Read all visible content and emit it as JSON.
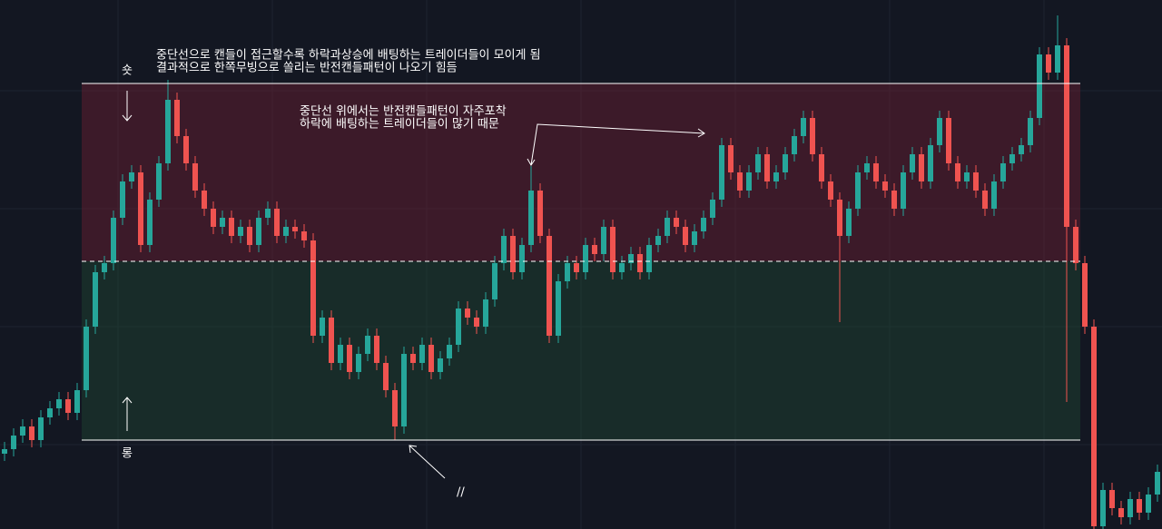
{
  "chart_data": {
    "type": "candlestick",
    "annotations": [
      "숏",
      "롱",
      "중단선으로 캔들이 접근할수록 하락과상승에 배팅하는 트레이더들이 모이게 됨",
      "결과적으로 한쪽무빙으로 쏠리는 반전캔들패턴이 나오기 힘듬",
      "중단선 위에서는 반전캔들패턴이 자주포착",
      "하락에 배팅하는 트레이더들이 많기 때문",
      "//"
    ],
    "ylim": [
      0,
      583
    ],
    "levels": [
      491,
      295,
      98
    ],
    "up_color": "#26a69a",
    "down_color": "#ef5350",
    "open": [
      83,
      88,
      103,
      113,
      98,
      123,
      133,
      143,
      128,
      153,
      223,
      283,
      293,
      343,
      383,
      393,
      313,
      363,
      403,
      473,
      433,
      403,
      373,
      353,
      333,
      343,
      323,
      333,
      313,
      343,
      353,
      323,
      333,
      328,
      318,
      213,
      233,
      183,
      203,
      173,
      193,
      213,
      183,
      153,
      113,
      193,
      183,
      203,
      173,
      188,
      203,
      243,
      233,
      223,
      253,
      293,
      323,
      283,
      313,
      373,
      323,
      213,
      273,
      293,
      283,
      313,
      303,
      333,
      283,
      293,
      303,
      283,
      313,
      323,
      343,
      333,
      313,
      328,
      343,
      363,
      423,
      393,
      373,
      393,
      413,
      383,
      393,
      413,
      433,
      453,
      413,
      383,
      363,
      323,
      353,
      393,
      403,
      383,
      373,
      353,
      393,
      413,
      383,
      423,
      453,
      403,
      383,
      393,
      373,
      353,
      383,
      403,
      413,
      423,
      453,
      523,
      503,
      533,
      333,
      293,
      223,
      3,
      43,
      23,
      13,
      33,
      18,
      38
    ],
    "high": [
      96,
      111,
      121,
      121,
      131,
      141,
      151,
      151,
      161,
      231,
      291,
      301,
      351,
      391,
      401,
      401,
      371,
      411,
      495,
      481,
      441,
      411,
      381,
      361,
      351,
      351,
      341,
      341,
      351,
      361,
      361,
      341,
      341,
      336,
      326,
      241,
      241,
      211,
      211,
      201,
      221,
      221,
      191,
      161,
      201,
      201,
      211,
      211,
      196,
      211,
      251,
      251,
      241,
      261,
      301,
      331,
      331,
      321,
      400,
      381,
      331,
      281,
      301,
      301,
      321,
      321,
      341,
      341,
      301,
      311,
      311,
      321,
      331,
      351,
      351,
      341,
      336,
      351,
      371,
      431,
      431,
      401,
      401,
      421,
      421,
      401,
      421,
      441,
      461,
      461,
      421,
      391,
      371,
      361,
      401,
      411,
      411,
      391,
      381,
      401,
      421,
      421,
      431,
      461,
      461,
      411,
      401,
      401,
      381,
      391,
      411,
      421,
      431,
      461,
      531,
      531,
      566,
      541,
      341,
      301,
      231,
      51,
      51,
      31,
      41,
      41,
      46,
      71
    ],
    "low": [
      75,
      80,
      95,
      90,
      90,
      115,
      125,
      120,
      120,
      145,
      215,
      275,
      285,
      335,
      375,
      305,
      305,
      355,
      395,
      425,
      395,
      365,
      345,
      325,
      325,
      315,
      315,
      305,
      305,
      335,
      315,
      315,
      320,
      310,
      205,
      205,
      175,
      175,
      165,
      165,
      185,
      175,
      145,
      98,
      105,
      175,
      175,
      165,
      165,
      180,
      195,
      225,
      215,
      215,
      245,
      285,
      275,
      275,
      305,
      315,
      205,
      205,
      265,
      275,
      275,
      295,
      295,
      275,
      275,
      285,
      275,
      275,
      305,
      315,
      325,
      305,
      305,
      320,
      335,
      355,
      385,
      365,
      365,
      385,
      375,
      375,
      385,
      405,
      425,
      405,
      375,
      355,
      228,
      315,
      345,
      385,
      375,
      365,
      345,
      345,
      385,
      375,
      375,
      415,
      395,
      375,
      375,
      365,
      345,
      345,
      375,
      395,
      405,
      415,
      445,
      495,
      495,
      140,
      285,
      215,
      0,
      0,
      15,
      5,
      5,
      10,
      10,
      30
    ],
    "close": [
      88,
      103,
      113,
      98,
      123,
      133,
      143,
      128,
      153,
      223,
      283,
      293,
      343,
      383,
      393,
      313,
      363,
      403,
      473,
      433,
      403,
      373,
      353,
      333,
      343,
      323,
      333,
      313,
      343,
      353,
      323,
      333,
      328,
      318,
      213,
      233,
      183,
      203,
      173,
      193,
      213,
      183,
      153,
      113,
      193,
      183,
      203,
      173,
      188,
      203,
      243,
      233,
      223,
      253,
      293,
      323,
      283,
      313,
      373,
      323,
      213,
      273,
      293,
      283,
      313,
      303,
      333,
      283,
      293,
      303,
      283,
      313,
      323,
      343,
      333,
      313,
      328,
      343,
      363,
      423,
      393,
      373,
      393,
      413,
      383,
      393,
      413,
      433,
      453,
      413,
      383,
      363,
      323,
      353,
      393,
      403,
      383,
      373,
      353,
      393,
      413,
      383,
      423,
      453,
      403,
      383,
      393,
      373,
      353,
      383,
      403,
      413,
      423,
      453,
      523,
      503,
      533,
      333,
      293,
      223,
      3,
      43,
      23,
      13,
      33,
      18,
      38,
      63
    ]
  }
}
